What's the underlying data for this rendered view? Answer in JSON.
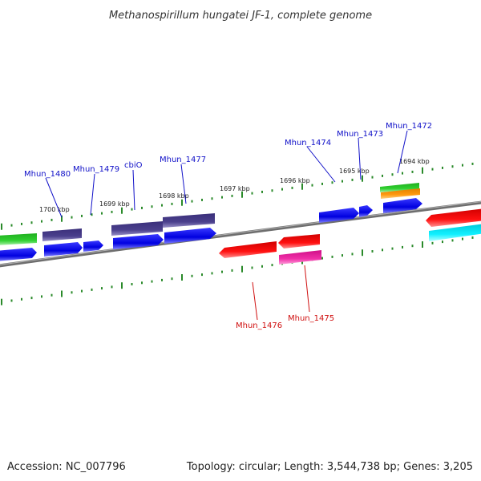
{
  "title": "Methanospirillum hungatei JF-1, complete genome",
  "footer": {
    "accession": "Accession: NC_007796",
    "summary": "Topology: circular; Length: 3,544,738 bp; Genes: 3,205"
  },
  "colors": {
    "backbone": "#7a7a7a",
    "tick": "#2a8a2a",
    "fwd_label": "#1010c8",
    "rev_label": "#d01010"
  },
  "scale_labels": [
    "1700 kbp",
    "1699 kbp",
    "1698 kbp",
    "1697 kbp",
    "1696 kbp",
    "1695 kbp",
    "1694 kbp"
  ],
  "genes": {
    "forward": [
      "Mhun_1480",
      "Mhun_1479",
      "cbiO",
      "Mhun_1477",
      "Mhun_1474",
      "Mhun_1473",
      "Mhun_1472"
    ],
    "reverse": [
      "Mhun_1476",
      "Mhun_1475"
    ]
  },
  "feature_colors": [
    "blue",
    "dark slate blue",
    "green",
    "orange",
    "red",
    "magenta",
    "cyan"
  ]
}
